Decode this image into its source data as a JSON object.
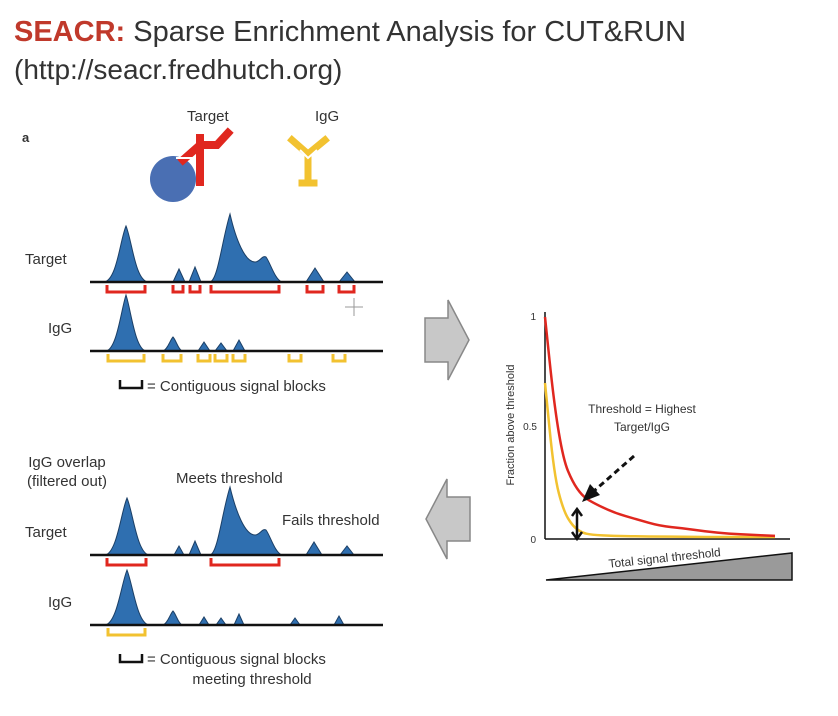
{
  "slide": {
    "title_acronym": "SEACR:",
    "title_rest": " Sparse Enrichment Analysis for CUT&RUN",
    "url": "(http://seacr.fredhutch.org)"
  },
  "panel": {
    "letter": "a",
    "antibody_target": "Target",
    "antibody_igg": "IgG"
  },
  "tracks_top": {
    "target_label": "Target",
    "igg_label": "IgG",
    "legend": "= Contiguous signal blocks"
  },
  "tracks_bottom": {
    "target_label": "Target",
    "igg_label": "IgG",
    "igg_overlap_line1": "IgG overlap",
    "igg_overlap_line2": "(filtered out)",
    "meets_threshold": "Meets threshold",
    "fails_threshold": "Fails threshold",
    "legend_line1": "= Contiguous signal blocks",
    "legend_line2": "meeting threshold"
  },
  "chart": {
    "ylabel": "Fraction above threshold",
    "ytick_top": "1",
    "ytick_mid": "0.5",
    "ytick_zero": "0",
    "annotation_line1": "Threshold = Highest",
    "annotation_line2": "Target/IgG",
    "xlabel": "Total signal threshold"
  },
  "colors": {
    "target_red": "#e0271f",
    "igg_yellow": "#f2c230",
    "peak_blue": "#2f6fb0",
    "protein_blue": "#4a6fb3",
    "arrow_gray": "#c8c8c8"
  },
  "chart_data": {
    "type": "line",
    "xlabel": "Total signal threshold",
    "ylabel": "Fraction above threshold",
    "ylim": [
      0,
      1
    ],
    "x": [
      0,
      0.04,
      0.08,
      0.12,
      0.16,
      0.2,
      0.3,
      0.4,
      0.5,
      0.6,
      0.7,
      0.8,
      0.9,
      1.0
    ],
    "series": [
      {
        "values": [
          1.0,
          0.6,
          0.35,
          0.25,
          0.19,
          0.16,
          0.11,
          0.08,
          0.05,
          0.04,
          0.025,
          0.015,
          0.01,
          0.005
        ]
      },
      {
        "values": [
          0.7,
          0.28,
          0.12,
          0.05,
          0.02,
          0.01,
          0.005,
          0.003,
          0.002,
          0.001,
          0.0,
          0.0,
          0.0,
          0.0
        ]
      }
    ]
  }
}
